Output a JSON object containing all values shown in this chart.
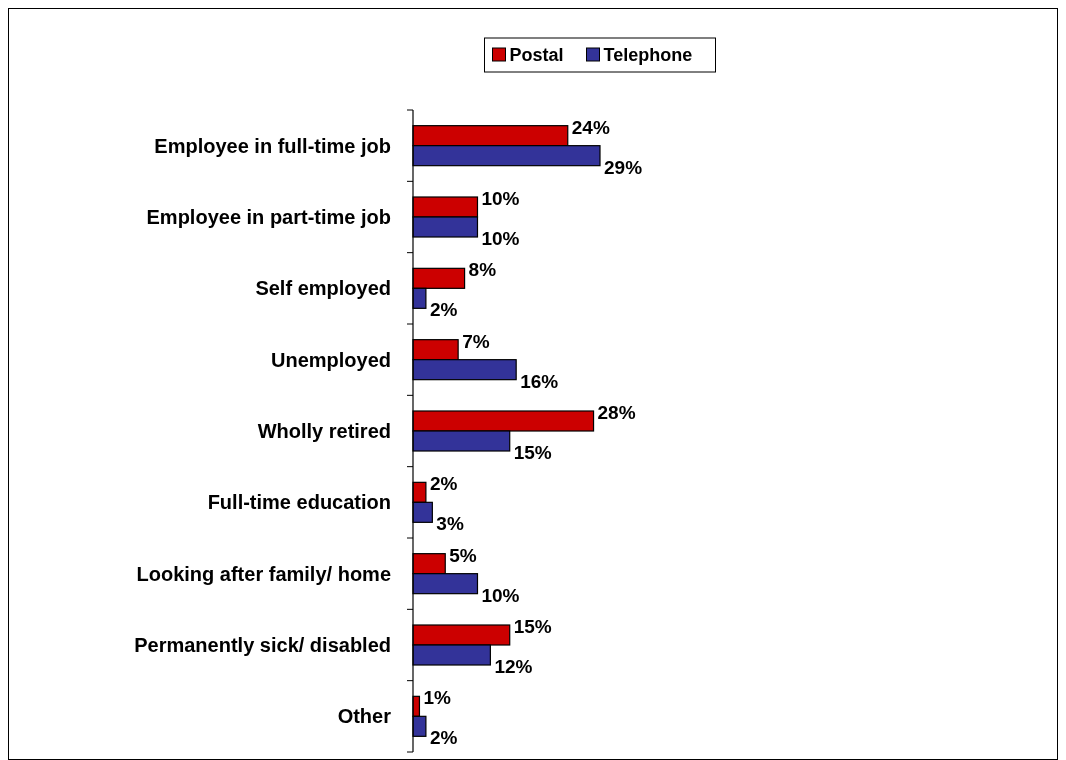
{
  "chart_data": {
    "type": "bar",
    "orientation": "horizontal",
    "categories": [
      "Employee in full-time job",
      "Employee in part-time job",
      "Self employed",
      "Unemployed",
      "Wholly retired",
      "Full-time education",
      "Looking after family/ home",
      "Permanently sick/ disabled",
      "Other"
    ],
    "series": [
      {
        "name": "Postal",
        "color": "#cc0000",
        "values": [
          24,
          10,
          8,
          7,
          28,
          2,
          5,
          15,
          1
        ],
        "value_labels": [
          "24%",
          "10%",
          "8%",
          "7%",
          "28%",
          "2%",
          "5%",
          "15%",
          "1%"
        ]
      },
      {
        "name": "Telephone",
        "color": "#333399",
        "values": [
          29,
          10,
          2,
          16,
          15,
          3,
          10,
          12,
          2
        ],
        "value_labels": [
          "29%",
          "10%",
          "2%",
          "16%",
          "15%",
          "3%",
          "10%",
          "12%",
          "2%"
        ]
      }
    ],
    "legend": "top"
  }
}
